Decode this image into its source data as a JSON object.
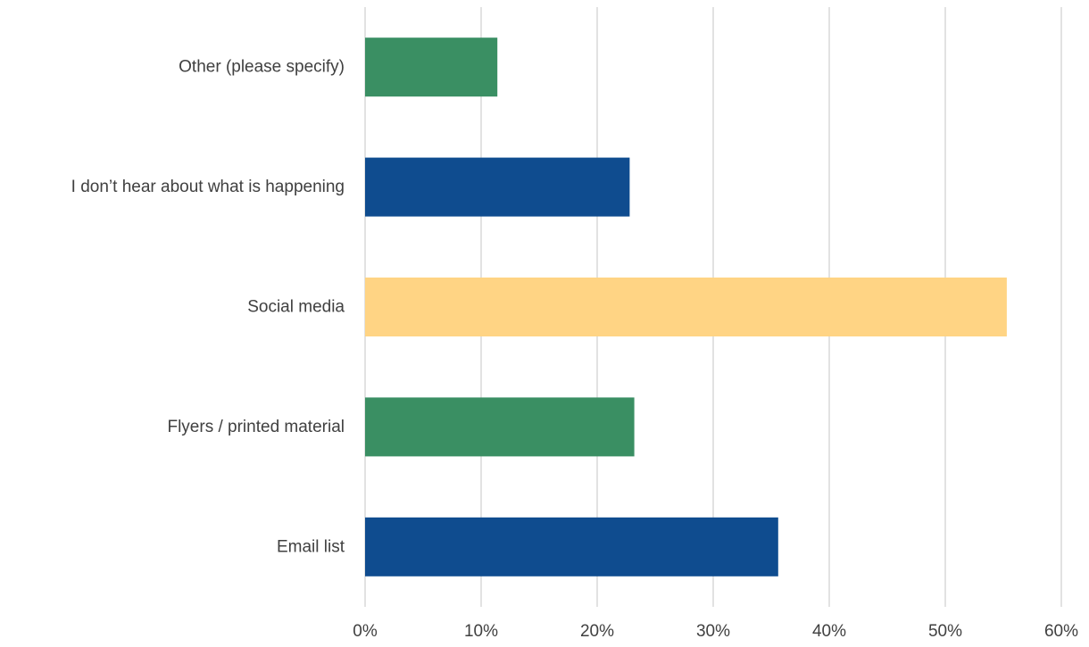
{
  "chart_data": {
    "type": "bar",
    "orientation": "horizontal",
    "categories": [
      "Other (please specify)",
      "I don’t hear about what is happening",
      "Social media",
      "Flyers / printed material",
      "Email list"
    ],
    "values": [
      11.4,
      22.8,
      55.3,
      23.2,
      35.6
    ],
    "bar_colors": [
      "#3a8f63",
      "#0f4c8f",
      "#ffd484",
      "#3a8f63",
      "#0f4c8f"
    ],
    "xlim": [
      0,
      60
    ],
    "xticks": [
      0,
      10,
      20,
      30,
      40,
      50,
      60
    ],
    "xtick_labels": [
      "0%",
      "10%",
      "20%",
      "30%",
      "40%",
      "50%",
      "60%"
    ],
    "grid": "vertical",
    "legend": "none"
  }
}
